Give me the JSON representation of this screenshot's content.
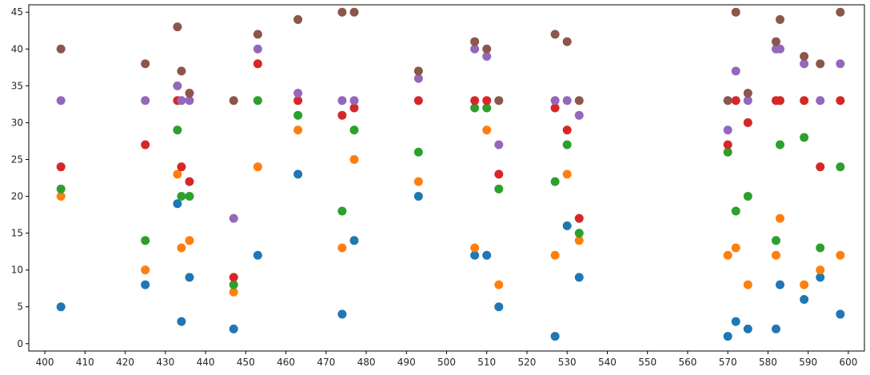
{
  "chart_data": {
    "type": "scatter",
    "title": "",
    "xlabel": "",
    "ylabel": "",
    "xlim": [
      396,
      604
    ],
    "ylim": [
      -1,
      46
    ],
    "xticks": [
      400,
      410,
      420,
      430,
      440,
      450,
      460,
      470,
      480,
      490,
      500,
      510,
      520,
      530,
      540,
      550,
      560,
      570,
      580,
      590,
      600
    ],
    "yticks": [
      0,
      5,
      10,
      15,
      20,
      25,
      30,
      35,
      40,
      45
    ],
    "grid": false,
    "x": [
      404,
      425,
      433,
      434,
      436,
      447,
      453,
      463,
      474,
      477,
      493,
      507,
      510,
      513,
      527,
      530,
      533,
      570,
      572,
      575,
      582,
      583,
      589,
      593,
      598
    ],
    "series": [
      {
        "color": "#1f77b4",
        "values": [
          5,
          8,
          19,
          3,
          9,
          2,
          12,
          23,
          4,
          14,
          20,
          12,
          12,
          5,
          1,
          16,
          9,
          1,
          3,
          2,
          2,
          8,
          6,
          9,
          4
        ]
      },
      {
        "color": "#ff7f0e",
        "values": [
          20,
          10,
          23,
          13,
          14,
          7,
          24,
          29,
          13,
          25,
          22,
          13,
          29,
          8,
          12,
          23,
          14,
          12,
          13,
          8,
          12,
          17,
          8,
          10,
          12
        ]
      },
      {
        "color": "#2ca02c",
        "values": [
          21,
          14,
          29,
          20,
          20,
          8,
          33,
          31,
          18,
          29,
          26,
          32,
          32,
          21,
          22,
          27,
          15,
          26,
          18,
          20,
          14,
          27,
          28,
          13,
          24
        ]
      },
      {
        "color": "#d62728",
        "values": [
          24,
          27,
          33,
          24,
          22,
          9,
          38,
          33,
          31,
          32,
          33,
          33,
          33,
          23,
          32,
          29,
          17,
          27,
          33,
          30,
          33,
          33,
          33,
          24,
          33
        ]
      },
      {
        "color": "#9467bd",
        "values": [
          33,
          33,
          35,
          33,
          33,
          17,
          40,
          34,
          33,
          33,
          36,
          40,
          39,
          27,
          33,
          33,
          31,
          29,
          37,
          33,
          40,
          40,
          38,
          33,
          38
        ]
      },
      {
        "color": "#8c564b",
        "values": [
          40,
          38,
          43,
          37,
          34,
          33,
          42,
          44,
          45,
          45,
          37,
          41,
          40,
          33,
          42,
          41,
          33,
          33,
          45,
          34,
          41,
          44,
          39,
          38,
          45
        ]
      }
    ]
  }
}
